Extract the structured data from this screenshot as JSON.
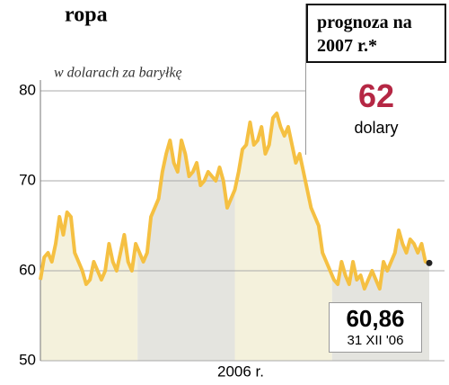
{
  "chart_data": {
    "type": "line",
    "title": "ropa",
    "subtitle": "w dolarach za baryłkę",
    "xlabel": "2006 r.",
    "values": [
      59,
      61.5,
      62,
      61,
      63,
      66,
      64,
      66.5,
      66,
      62,
      61,
      60,
      58.5,
      59,
      61,
      60,
      59,
      60,
      63,
      61,
      60,
      62,
      64,
      61,
      60,
      63,
      62,
      61,
      62,
      66,
      67,
      68,
      71,
      73,
      74.5,
      72,
      71,
      74.5,
      73,
      70.5,
      71,
      72,
      69.5,
      70,
      71,
      70.5,
      70,
      71.5,
      70,
      67,
      68,
      69,
      71,
      73.5,
      74,
      76.5,
      74,
      74.5,
      76,
      73,
      74,
      77,
      77.5,
      76,
      75,
      76,
      74,
      72,
      73,
      71,
      69,
      67,
      66,
      65,
      62,
      61,
      60,
      59,
      58.5,
      61,
      59.5,
      58.5,
      61,
      59,
      59.5,
      58,
      59,
      60,
      59,
      58,
      61,
      60,
      61,
      62,
      64.5,
      63,
      62,
      63.5,
      63,
      62,
      63,
      61,
      60.86
    ],
    "ylim": [
      50,
      80
    ],
    "yticks": [
      50,
      60,
      70,
      80
    ],
    "grid": true,
    "color": "#f5c042",
    "end_label": {
      "label": "60,86",
      "date": "31 XII '06"
    },
    "forecast": {
      "title": "prognoza na 2007 r.*",
      "value": 62,
      "unit": "dolary"
    }
  }
}
